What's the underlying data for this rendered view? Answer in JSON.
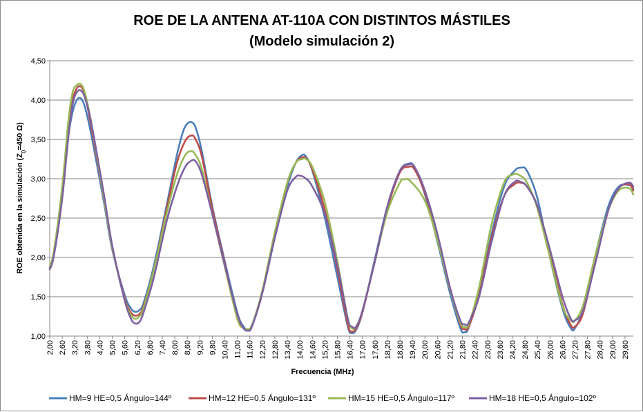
{
  "chart_data": {
    "type": "line",
    "title": "ROE DE LA ANTENA AT-110A CON DISTINTOS MÁSTILES",
    "subtitle": "(Modelo simulación 2)",
    "xlabel": "Frecuencia (MHz)",
    "ylabel": {
      "prefix": "ROE obtenida en la simulación (Z",
      "subscript": "0",
      "suffix": "=450 Ω)"
    },
    "ylim": [
      1.0,
      4.5
    ],
    "yticks": [
      "1,00",
      "1,50",
      "2,00",
      "2,50",
      "3,00",
      "3,50",
      "4,00",
      "4,50"
    ],
    "yticks_values": [
      1.0,
      1.5,
      2.0,
      2.5,
      3.0,
      3.5,
      4.0,
      4.5
    ],
    "xlim": [
      2.0,
      30.0
    ],
    "xticks": [
      "2,00",
      "2,60",
      "3,20",
      "3,80",
      "4,40",
      "5,00",
      "5,60",
      "6,20",
      "6,80",
      "7,40",
      "8,00",
      "8,60",
      "9,20",
      "9,80",
      "10,40",
      "11,00",
      "11,60",
      "12,20",
      "12,80",
      "13,40",
      "14,00",
      "14,60",
      "15,20",
      "15,80",
      "16,40",
      "17,00",
      "17,60",
      "18,20",
      "18,80",
      "19,40",
      "20,00",
      "20,60",
      "21,20",
      "21,80",
      "22,40",
      "23,00",
      "23,60",
      "24,20",
      "24,80",
      "25,40",
      "26,00",
      "26,60",
      "27,20",
      "27,80",
      "28,40",
      "29,00",
      "29,60"
    ],
    "grid": "horizontal",
    "legend_position": "bottom",
    "series": [
      {
        "name": "HM=9 HE=0,5 Ángulo=144º",
        "color": "#4a7ebb",
        "points": [
          [
            2.0,
            1.87
          ],
          [
            2.2,
            2.05
          ],
          [
            2.6,
            2.8
          ],
          [
            2.9,
            3.55
          ],
          [
            3.1,
            3.85
          ],
          [
            3.3,
            4.0
          ],
          [
            3.5,
            4.02
          ],
          [
            3.7,
            3.9
          ],
          [
            4.0,
            3.55
          ],
          [
            4.6,
            2.7
          ],
          [
            5.0,
            2.1
          ],
          [
            5.6,
            1.52
          ],
          [
            5.9,
            1.35
          ],
          [
            6.1,
            1.31
          ],
          [
            6.3,
            1.33
          ],
          [
            6.5,
            1.42
          ],
          [
            7.0,
            1.9
          ],
          [
            7.6,
            2.65
          ],
          [
            8.1,
            3.3
          ],
          [
            8.4,
            3.6
          ],
          [
            8.6,
            3.7
          ],
          [
            8.8,
            3.72
          ],
          [
            9.0,
            3.65
          ],
          [
            9.3,
            3.35
          ],
          [
            9.8,
            2.65
          ],
          [
            10.4,
            1.95
          ],
          [
            11.0,
            1.3
          ],
          [
            11.3,
            1.12
          ],
          [
            11.5,
            1.09
          ],
          [
            11.7,
            1.14
          ],
          [
            12.2,
            1.55
          ],
          [
            12.8,
            2.25
          ],
          [
            13.4,
            2.9
          ],
          [
            13.8,
            3.2
          ],
          [
            14.1,
            3.3
          ],
          [
            14.3,
            3.28
          ],
          [
            14.6,
            3.1
          ],
          [
            15.2,
            2.5
          ],
          [
            15.8,
            1.75
          ],
          [
            16.3,
            1.12
          ],
          [
            16.5,
            1.04
          ],
          [
            16.7,
            1.08
          ],
          [
            17.0,
            1.3
          ],
          [
            17.6,
            1.98
          ],
          [
            18.2,
            2.65
          ],
          [
            18.8,
            3.1
          ],
          [
            19.2,
            3.19
          ],
          [
            19.5,
            3.15
          ],
          [
            20.0,
            2.8
          ],
          [
            20.6,
            2.2
          ],
          [
            21.2,
            1.55
          ],
          [
            21.7,
            1.1
          ],
          [
            21.9,
            1.05
          ],
          [
            22.1,
            1.11
          ],
          [
            22.6,
            1.55
          ],
          [
            23.2,
            2.3
          ],
          [
            23.8,
            2.9
          ],
          [
            24.3,
            3.1
          ],
          [
            24.6,
            3.14
          ],
          [
            24.9,
            3.1
          ],
          [
            25.4,
            2.75
          ],
          [
            26.0,
            2.0
          ],
          [
            26.6,
            1.35
          ],
          [
            27.0,
            1.1
          ],
          [
            27.2,
            1.1
          ],
          [
            27.6,
            1.35
          ],
          [
            28.2,
            2.05
          ],
          [
            28.8,
            2.65
          ],
          [
            29.3,
            2.9
          ],
          [
            29.8,
            2.92
          ],
          [
            30.0,
            2.87
          ]
        ]
      },
      {
        "name": "HM=12 HE=0,5 Ángulo=131º",
        "color": "#be4b48",
        "points": [
          [
            2.0,
            1.88
          ],
          [
            2.2,
            2.07
          ],
          [
            2.6,
            2.85
          ],
          [
            2.9,
            3.65
          ],
          [
            3.1,
            4.0
          ],
          [
            3.3,
            4.15
          ],
          [
            3.5,
            4.17
          ],
          [
            3.7,
            4.05
          ],
          [
            4.0,
            3.65
          ],
          [
            4.6,
            2.75
          ],
          [
            5.0,
            2.12
          ],
          [
            5.6,
            1.48
          ],
          [
            5.9,
            1.3
          ],
          [
            6.1,
            1.26
          ],
          [
            6.3,
            1.28
          ],
          [
            6.5,
            1.38
          ],
          [
            7.0,
            1.85
          ],
          [
            7.6,
            2.6
          ],
          [
            8.1,
            3.2
          ],
          [
            8.5,
            3.48
          ],
          [
            8.8,
            3.55
          ],
          [
            9.0,
            3.5
          ],
          [
            9.3,
            3.28
          ],
          [
            9.8,
            2.62
          ],
          [
            10.4,
            1.92
          ],
          [
            11.0,
            1.25
          ],
          [
            11.3,
            1.1
          ],
          [
            11.5,
            1.08
          ],
          [
            11.7,
            1.13
          ],
          [
            12.2,
            1.55
          ],
          [
            12.8,
            2.3
          ],
          [
            13.4,
            2.95
          ],
          [
            13.8,
            3.2
          ],
          [
            14.1,
            3.27
          ],
          [
            14.3,
            3.26
          ],
          [
            14.6,
            3.12
          ],
          [
            15.2,
            2.6
          ],
          [
            15.8,
            1.85
          ],
          [
            16.3,
            1.15
          ],
          [
            16.5,
            1.06
          ],
          [
            16.7,
            1.1
          ],
          [
            17.0,
            1.3
          ],
          [
            17.6,
            1.95
          ],
          [
            18.2,
            2.62
          ],
          [
            18.8,
            3.08
          ],
          [
            19.2,
            3.15
          ],
          [
            19.5,
            3.12
          ],
          [
            20.0,
            2.82
          ],
          [
            20.6,
            2.28
          ],
          [
            21.2,
            1.62
          ],
          [
            21.7,
            1.15
          ],
          [
            21.9,
            1.09
          ],
          [
            22.1,
            1.12
          ],
          [
            22.6,
            1.52
          ],
          [
            23.2,
            2.25
          ],
          [
            23.8,
            2.78
          ],
          [
            24.3,
            2.93
          ],
          [
            24.6,
            2.95
          ],
          [
            24.9,
            2.9
          ],
          [
            25.4,
            2.65
          ],
          [
            26.0,
            2.05
          ],
          [
            26.6,
            1.4
          ],
          [
            27.0,
            1.14
          ],
          [
            27.2,
            1.12
          ],
          [
            27.6,
            1.3
          ],
          [
            28.2,
            1.98
          ],
          [
            28.8,
            2.6
          ],
          [
            29.3,
            2.88
          ],
          [
            29.8,
            2.93
          ],
          [
            30.0,
            2.85
          ]
        ]
      },
      {
        "name": "HM=15 HE=0,5 Ángulo=117º",
        "color": "#98b954",
        "points": [
          [
            2.0,
            1.88
          ],
          [
            2.2,
            2.08
          ],
          [
            2.6,
            2.9
          ],
          [
            2.9,
            3.75
          ],
          [
            3.1,
            4.1
          ],
          [
            3.3,
            4.19
          ],
          [
            3.5,
            4.2
          ],
          [
            3.7,
            4.08
          ],
          [
            4.0,
            3.7
          ],
          [
            4.6,
            2.75
          ],
          [
            5.0,
            2.12
          ],
          [
            5.6,
            1.46
          ],
          [
            5.9,
            1.27
          ],
          [
            6.1,
            1.22
          ],
          [
            6.3,
            1.25
          ],
          [
            6.5,
            1.36
          ],
          [
            7.0,
            1.85
          ],
          [
            7.6,
            2.55
          ],
          [
            8.1,
            3.05
          ],
          [
            8.5,
            3.3
          ],
          [
            8.8,
            3.35
          ],
          [
            9.0,
            3.3
          ],
          [
            9.3,
            3.12
          ],
          [
            9.8,
            2.55
          ],
          [
            10.4,
            1.88
          ],
          [
            11.0,
            1.22
          ],
          [
            11.3,
            1.1
          ],
          [
            11.5,
            1.09
          ],
          [
            11.7,
            1.14
          ],
          [
            12.2,
            1.58
          ],
          [
            12.8,
            2.32
          ],
          [
            13.4,
            2.95
          ],
          [
            13.8,
            3.2
          ],
          [
            14.1,
            3.25
          ],
          [
            14.3,
            3.25
          ],
          [
            14.6,
            3.15
          ],
          [
            15.2,
            2.7
          ],
          [
            15.8,
            1.95
          ],
          [
            16.3,
            1.22
          ],
          [
            16.5,
            1.1
          ],
          [
            16.7,
            1.12
          ],
          [
            17.0,
            1.32
          ],
          [
            17.6,
            1.95
          ],
          [
            18.2,
            2.58
          ],
          [
            18.8,
            2.95
          ],
          [
            19.0,
            2.99
          ],
          [
            19.3,
            2.97
          ],
          [
            20.0,
            2.72
          ],
          [
            20.6,
            2.22
          ],
          [
            21.2,
            1.6
          ],
          [
            21.7,
            1.17
          ],
          [
            21.9,
            1.12
          ],
          [
            22.1,
            1.15
          ],
          [
            22.6,
            1.62
          ],
          [
            23.2,
            2.42
          ],
          [
            23.8,
            2.95
          ],
          [
            24.2,
            3.05
          ],
          [
            24.5,
            3.05
          ],
          [
            24.9,
            2.95
          ],
          [
            25.4,
            2.62
          ],
          [
            26.0,
            2.0
          ],
          [
            26.6,
            1.38
          ],
          [
            27.0,
            1.2
          ],
          [
            27.2,
            1.2
          ],
          [
            27.6,
            1.4
          ],
          [
            28.2,
            2.05
          ],
          [
            28.8,
            2.6
          ],
          [
            29.3,
            2.85
          ],
          [
            29.8,
            2.88
          ],
          [
            30.0,
            2.8
          ]
        ]
      },
      {
        "name": "HM=18 HE=0,5 Ángulo=102º",
        "color": "#7d60a0",
        "points": [
          [
            2.0,
            1.85
          ],
          [
            2.2,
            2.02
          ],
          [
            2.6,
            2.75
          ],
          [
            2.9,
            3.55
          ],
          [
            3.1,
            3.95
          ],
          [
            3.3,
            4.1
          ],
          [
            3.5,
            4.12
          ],
          [
            3.7,
            4.02
          ],
          [
            4.0,
            3.7
          ],
          [
            4.6,
            2.8
          ],
          [
            5.0,
            2.15
          ],
          [
            5.6,
            1.45
          ],
          [
            5.9,
            1.22
          ],
          [
            6.1,
            1.16
          ],
          [
            6.3,
            1.18
          ],
          [
            6.5,
            1.3
          ],
          [
            7.0,
            1.75
          ],
          [
            7.6,
            2.45
          ],
          [
            8.1,
            2.9
          ],
          [
            8.5,
            3.15
          ],
          [
            8.8,
            3.23
          ],
          [
            9.0,
            3.22
          ],
          [
            9.3,
            3.05
          ],
          [
            9.8,
            2.55
          ],
          [
            10.4,
            1.9
          ],
          [
            11.0,
            1.28
          ],
          [
            11.3,
            1.1
          ],
          [
            11.5,
            1.07
          ],
          [
            11.7,
            1.12
          ],
          [
            12.2,
            1.55
          ],
          [
            12.8,
            2.25
          ],
          [
            13.4,
            2.85
          ],
          [
            13.8,
            3.02
          ],
          [
            14.0,
            3.04
          ],
          [
            14.3,
            3.0
          ],
          [
            14.6,
            2.9
          ],
          [
            15.2,
            2.55
          ],
          [
            15.8,
            1.9
          ],
          [
            16.3,
            1.22
          ],
          [
            16.5,
            1.12
          ],
          [
            16.7,
            1.12
          ],
          [
            17.0,
            1.32
          ],
          [
            17.6,
            1.95
          ],
          [
            18.2,
            2.65
          ],
          [
            18.8,
            3.1
          ],
          [
            19.2,
            3.18
          ],
          [
            19.5,
            3.15
          ],
          [
            20.0,
            2.85
          ],
          [
            20.6,
            2.3
          ],
          [
            21.2,
            1.62
          ],
          [
            21.7,
            1.2
          ],
          [
            21.9,
            1.15
          ],
          [
            22.1,
            1.17
          ],
          [
            22.6,
            1.5
          ],
          [
            23.2,
            2.2
          ],
          [
            23.8,
            2.78
          ],
          [
            24.3,
            2.96
          ],
          [
            24.6,
            2.96
          ],
          [
            24.9,
            2.9
          ],
          [
            25.4,
            2.65
          ],
          [
            26.0,
            2.1
          ],
          [
            26.6,
            1.5
          ],
          [
            27.0,
            1.22
          ],
          [
            27.2,
            1.2
          ],
          [
            27.6,
            1.33
          ],
          [
            28.2,
            1.95
          ],
          [
            28.8,
            2.6
          ],
          [
            29.3,
            2.88
          ],
          [
            29.8,
            2.95
          ],
          [
            30.0,
            2.9
          ]
        ]
      }
    ]
  }
}
